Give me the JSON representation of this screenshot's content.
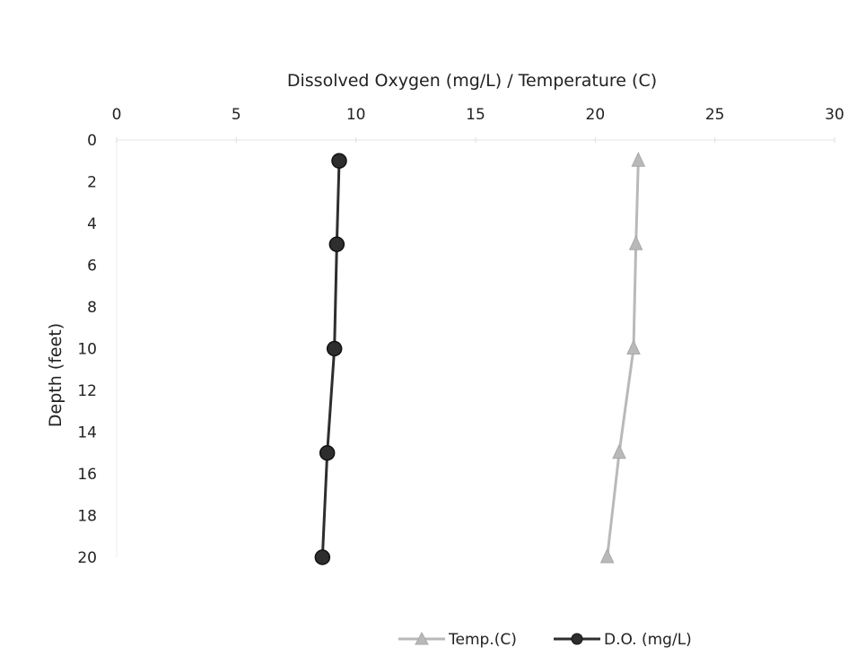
{
  "chart_data": {
    "type": "line",
    "title": "",
    "xlabel": "Dissolved Oxygen (mg/L) / Temperature (C)",
    "ylabel": "Depth (feet)",
    "xlim": [
      0,
      30
    ],
    "ylim": [
      0,
      20
    ],
    "y_inverted": true,
    "x_axis_position": "top",
    "x_ticks": [
      0,
      5,
      10,
      15,
      20,
      25,
      30
    ],
    "y_ticks": [
      0,
      2,
      4,
      6,
      8,
      10,
      12,
      14,
      16,
      18,
      20
    ],
    "grid": false,
    "legend_position": "bottom-center",
    "series": [
      {
        "name": "Temp.(C)",
        "marker": "triangle",
        "color": "#b9b9b9",
        "points": [
          {
            "x": 21.8,
            "y": 1
          },
          {
            "x": 21.7,
            "y": 5
          },
          {
            "x": 21.6,
            "y": 10
          },
          {
            "x": 21.0,
            "y": 15
          },
          {
            "x": 20.5,
            "y": 20
          }
        ]
      },
      {
        "name": "D.O. (mg/L)",
        "marker": "circle",
        "color": "#2e2e2e",
        "points": [
          {
            "x": 9.3,
            "y": 1
          },
          {
            "x": 9.2,
            "y": 5
          },
          {
            "x": 9.1,
            "y": 10
          },
          {
            "x": 8.8,
            "y": 15
          },
          {
            "x": 8.6,
            "y": 20
          }
        ]
      }
    ]
  }
}
